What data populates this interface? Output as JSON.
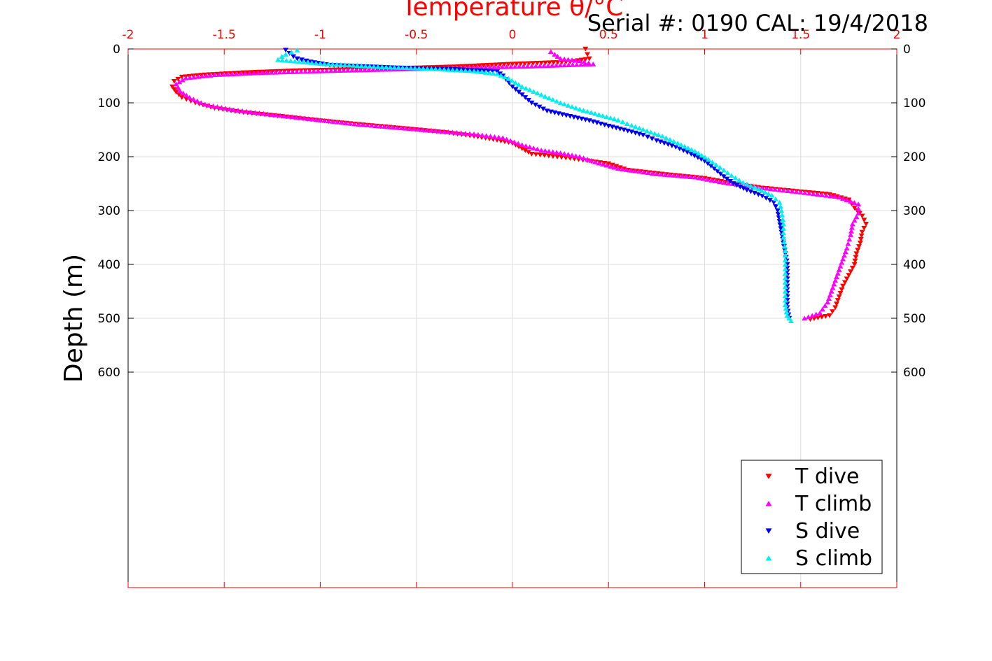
{
  "header": {
    "serial_text": "Serial #: 0190  CAL: 19/4/2018"
  },
  "chart_data": {
    "type": "scatter",
    "title": "",
    "xlabel": "Temperature θ/°C",
    "ylabel": "Depth (m)",
    "xlim": [
      -2,
      2
    ],
    "ylim": [
      0,
      1000
    ],
    "y_reversed": true,
    "x_ticks": [
      -2,
      -1.5,
      -1,
      -0.5,
      0,
      0.5,
      1,
      1.5,
      2
    ],
    "x_tick_labels": [
      "-2",
      "-1.5",
      "-1",
      "-0.5",
      "0",
      "0.5",
      "1",
      "1.5",
      "2"
    ],
    "y_ticks": [
      0,
      100,
      200,
      300,
      400,
      500,
      600
    ],
    "y_tick_labels": [
      "0",
      "100",
      "200",
      "300",
      "400",
      "500",
      "600"
    ],
    "grid": true,
    "legend_position": "bottom-right",
    "colors": {
      "axis_top": "#ff0000",
      "grid": "#dddddd"
    },
    "series": [
      {
        "name": "T dive",
        "color": "#ff0000",
        "marker": "triangle-down",
        "points": [
          [
            0.38,
            0
          ],
          [
            0.39,
            10
          ],
          [
            0.4,
            18
          ],
          [
            0.3,
            24
          ],
          [
            0.0,
            28
          ],
          [
            -0.3,
            33
          ],
          [
            -0.7,
            37
          ],
          [
            -1.1,
            40
          ],
          [
            -1.4,
            44
          ],
          [
            -1.6,
            48
          ],
          [
            -1.72,
            52
          ],
          [
            -1.76,
            60
          ],
          [
            -1.77,
            70
          ],
          [
            -1.75,
            80
          ],
          [
            -1.72,
            90
          ],
          [
            -1.65,
            100
          ],
          [
            -1.55,
            110
          ],
          [
            -1.4,
            118
          ],
          [
            -1.2,
            125
          ],
          [
            -1.0,
            133
          ],
          [
            -0.8,
            140
          ],
          [
            -0.55,
            148
          ],
          [
            -0.35,
            155
          ],
          [
            -0.2,
            162
          ],
          [
            -0.1,
            168
          ],
          [
            0.0,
            175
          ],
          [
            0.05,
            185
          ],
          [
            0.1,
            195
          ],
          [
            0.3,
            203
          ],
          [
            0.5,
            213
          ],
          [
            0.6,
            225
          ],
          [
            0.8,
            233
          ],
          [
            1.0,
            240
          ],
          [
            1.15,
            250
          ],
          [
            1.3,
            258
          ],
          [
            1.5,
            265
          ],
          [
            1.65,
            270
          ],
          [
            1.75,
            280
          ],
          [
            1.78,
            295
          ],
          [
            1.82,
            310
          ],
          [
            1.84,
            325
          ],
          [
            1.82,
            340
          ],
          [
            1.81,
            360
          ],
          [
            1.79,
            380
          ],
          [
            1.78,
            400
          ],
          [
            1.75,
            420
          ],
          [
            1.72,
            440
          ],
          [
            1.7,
            460
          ],
          [
            1.68,
            480
          ],
          [
            1.65,
            495
          ],
          [
            1.55,
            502
          ]
        ]
      },
      {
        "name": "T climb",
        "color": "#ff00ff",
        "marker": "triangle-up",
        "points": [
          [
            0.2,
            5
          ],
          [
            0.22,
            10
          ],
          [
            0.25,
            18
          ],
          [
            0.35,
            22
          ],
          [
            0.42,
            28
          ],
          [
            0.1,
            32
          ],
          [
            -0.4,
            36
          ],
          [
            -0.9,
            40
          ],
          [
            -1.3,
            44
          ],
          [
            -1.55,
            48
          ],
          [
            -1.7,
            54
          ],
          [
            -1.75,
            65
          ],
          [
            -1.73,
            78
          ],
          [
            -1.68,
            90
          ],
          [
            -1.6,
            103
          ],
          [
            -1.45,
            113
          ],
          [
            -1.25,
            122
          ],
          [
            -1.0,
            132
          ],
          [
            -0.8,
            140
          ],
          [
            -0.6,
            146
          ],
          [
            -0.4,
            152
          ],
          [
            -0.2,
            158
          ],
          [
            -0.05,
            165
          ],
          [
            0.05,
            178
          ],
          [
            0.15,
            188
          ],
          [
            0.25,
            193
          ],
          [
            0.35,
            200
          ],
          [
            0.45,
            212
          ],
          [
            0.55,
            222
          ],
          [
            0.75,
            232
          ],
          [
            0.95,
            238
          ],
          [
            1.1,
            248
          ],
          [
            1.3,
            258
          ],
          [
            1.5,
            266
          ],
          [
            1.7,
            275
          ],
          [
            1.8,
            288
          ],
          [
            1.8,
            305
          ],
          [
            1.77,
            325
          ],
          [
            1.76,
            345
          ],
          [
            1.74,
            370
          ],
          [
            1.72,
            390
          ],
          [
            1.7,
            410
          ],
          [
            1.68,
            430
          ],
          [
            1.66,
            450
          ],
          [
            1.64,
            470
          ],
          [
            1.6,
            490
          ],
          [
            1.52,
            500
          ]
        ]
      },
      {
        "name": "S dive",
        "color": "#0000ee",
        "marker": "triangle-down",
        "points": [
          [
            -1.18,
            2
          ],
          [
            -1.16,
            8
          ],
          [
            -1.14,
            14
          ],
          [
            -1.12,
            18
          ],
          [
            -1.05,
            24
          ],
          [
            -0.95,
            30
          ],
          [
            -0.6,
            35
          ],
          [
            -0.3,
            38
          ],
          [
            -0.08,
            42
          ],
          [
            -0.05,
            50
          ],
          [
            0.0,
            70
          ],
          [
            0.05,
            85
          ],
          [
            0.1,
            100
          ],
          [
            0.18,
            115
          ],
          [
            0.3,
            125
          ],
          [
            0.4,
            133
          ],
          [
            0.5,
            143
          ],
          [
            0.6,
            152
          ],
          [
            0.68,
            160
          ],
          [
            0.75,
            170
          ],
          [
            0.85,
            182
          ],
          [
            0.93,
            195
          ],
          [
            1.0,
            208
          ],
          [
            1.05,
            222
          ],
          [
            1.1,
            237
          ],
          [
            1.15,
            250
          ],
          [
            1.22,
            262
          ],
          [
            1.3,
            273
          ],
          [
            1.36,
            285
          ],
          [
            1.38,
            300
          ],
          [
            1.39,
            320
          ],
          [
            1.4,
            340
          ],
          [
            1.41,
            360
          ],
          [
            1.42,
            380
          ],
          [
            1.43,
            400
          ],
          [
            1.43,
            420
          ],
          [
            1.43,
            440
          ],
          [
            1.43,
            460
          ],
          [
            1.43,
            480
          ],
          [
            1.44,
            500
          ]
        ]
      },
      {
        "name": "S climb",
        "color": "#00eeee",
        "marker": "triangle-up",
        "points": [
          [
            -1.12,
            2
          ],
          [
            -1.15,
            6
          ],
          [
            -1.18,
            10
          ],
          [
            -1.2,
            14
          ],
          [
            -1.22,
            20
          ],
          [
            -1.0,
            27
          ],
          [
            -0.7,
            33
          ],
          [
            -0.4,
            37
          ],
          [
            -0.2,
            41
          ],
          [
            -0.08,
            46
          ],
          [
            -0.02,
            55
          ],
          [
            0.05,
            70
          ],
          [
            0.15,
            85
          ],
          [
            0.25,
            100
          ],
          [
            0.35,
            112
          ],
          [
            0.45,
            122
          ],
          [
            0.55,
            132
          ],
          [
            0.62,
            142
          ],
          [
            0.7,
            152
          ],
          [
            0.78,
            162
          ],
          [
            0.86,
            175
          ],
          [
            0.95,
            190
          ],
          [
            1.02,
            205
          ],
          [
            1.08,
            220
          ],
          [
            1.14,
            235
          ],
          [
            1.2,
            248
          ],
          [
            1.28,
            260
          ],
          [
            1.35,
            272
          ],
          [
            1.39,
            285
          ],
          [
            1.4,
            300
          ],
          [
            1.41,
            325
          ],
          [
            1.41,
            350
          ],
          [
            1.42,
            375
          ],
          [
            1.42,
            400
          ],
          [
            1.42,
            425
          ],
          [
            1.42,
            450
          ],
          [
            1.42,
            475
          ],
          [
            1.43,
            495
          ],
          [
            1.45,
            505
          ]
        ]
      }
    ]
  }
}
